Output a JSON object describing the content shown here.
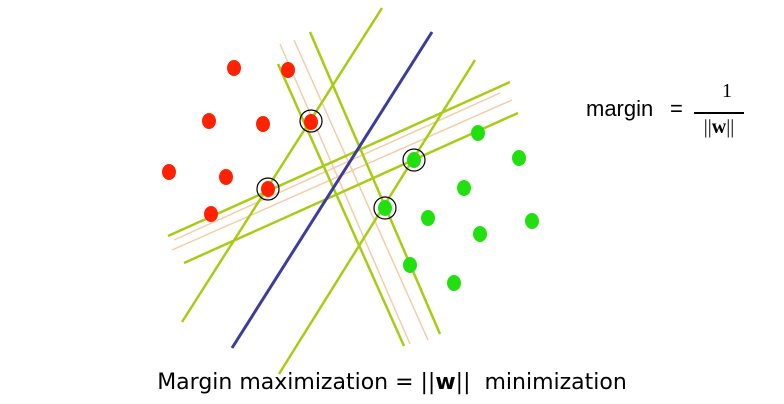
{
  "formula": {
    "label": "margin",
    "equals": "=",
    "numerator": "1",
    "denominator_left": "||",
    "denominator_var": "w",
    "denominator_right": "||"
  },
  "caption": {
    "prefix": "Margin maximization = ||",
    "var": "w",
    "suffix": "||  minimization"
  },
  "colors": {
    "class_a": "#ff2200",
    "class_b": "#22e010",
    "boundary": "#3c3c9c",
    "margin_line": "#a8cc14",
    "faint_line": "#f4cda8"
  }
}
